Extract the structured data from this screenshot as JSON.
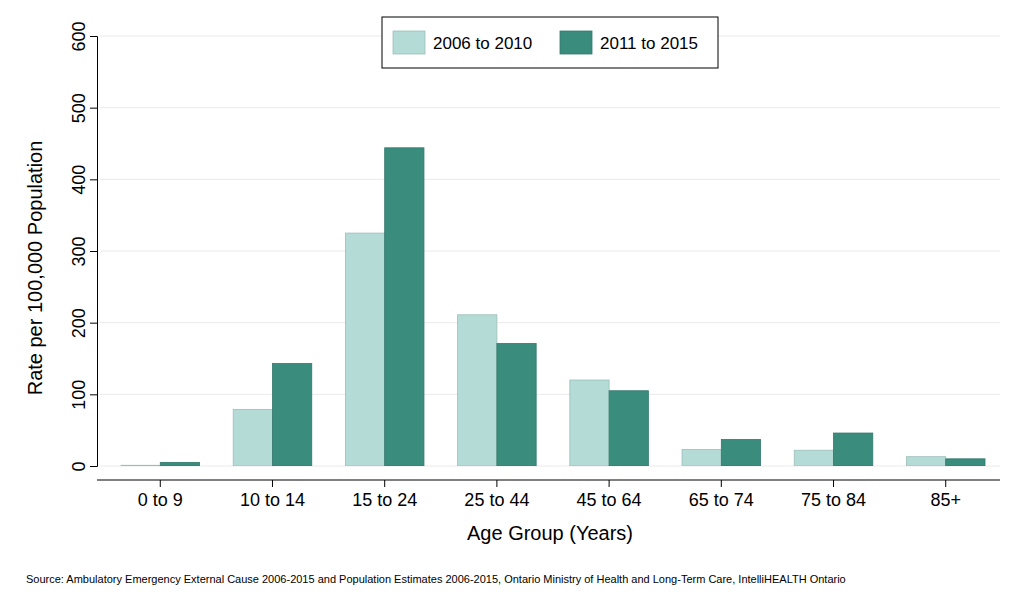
{
  "chart_data": {
    "type": "bar",
    "x_label": "Age Group (Years)",
    "y_label": "Rate per 100,000 Population",
    "source": "Source: Ambulatory Emergency External Cause 2006-2015 and Population Estimates 2006-2015, Ontario Ministry of Health and Long-Term Care, IntelliHEALTH Ontario",
    "categories": [
      "0 to 9",
      "10 to 14",
      "15 to 24",
      "25 to 44",
      "45 to 64",
      "65 to 74",
      "75 to 84",
      "85+"
    ],
    "series": [
      {
        "name": "2006 to 2010",
        "color": "#b4dbd5",
        "values": [
          1,
          79,
          325,
          211,
          120,
          23,
          22,
          13
        ]
      },
      {
        "name": "2011 to 2015",
        "color": "#3a8c7d",
        "values": [
          5,
          143,
          444,
          171,
          105,
          37,
          46,
          10
        ]
      }
    ],
    "ylim": [
      0,
      600
    ],
    "yticks": [
      0,
      100,
      200,
      300,
      400,
      500,
      600
    ],
    "grid": true,
    "legend": "top"
  }
}
